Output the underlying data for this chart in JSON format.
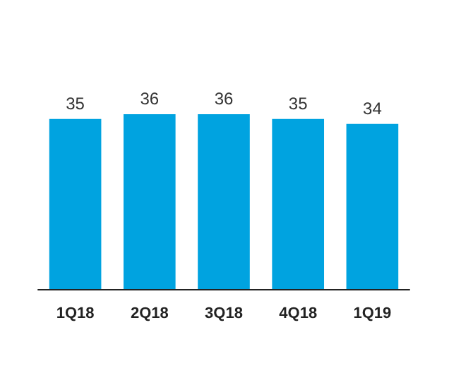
{
  "chart_data": {
    "type": "bar",
    "categories": [
      "1Q18",
      "2Q18",
      "3Q18",
      "4Q18",
      "1Q19"
    ],
    "values": [
      35,
      36,
      36,
      35,
      34
    ],
    "color": "#00a3e0",
    "data_labels": true
  }
}
